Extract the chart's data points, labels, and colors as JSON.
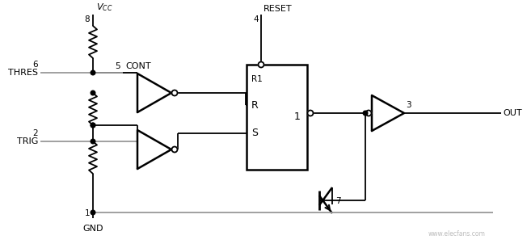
{
  "bg_color": "#ffffff",
  "line_color": "#000000",
  "gray_color": "#999999",
  "watermark": "www.elecfans.com",
  "labels": {
    "vcc": "$V_{CC}$",
    "cont": "CONT",
    "reset": "RESET",
    "thres": "THRES",
    "trig": "TRIG",
    "gnd": "GND",
    "out": "OUT",
    "r1": "R1",
    "r_lbl": "R",
    "s_lbl": "S",
    "q_lbl": "1",
    "pin8": "8",
    "pin5": "5",
    "pin4": "4",
    "pin6": "6",
    "pin2": "2",
    "pin1": "1",
    "pin3": "3",
    "pin7": "7"
  }
}
